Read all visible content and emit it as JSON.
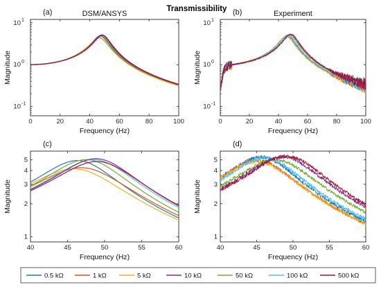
{
  "figure_title": "Transmissibility",
  "legend": {
    "entries": [
      {
        "label": "0.5 kΩ",
        "color": "#1f77b4"
      },
      {
        "label": "1 kΩ",
        "color": "#d95319"
      },
      {
        "label": "5 kΩ",
        "color": "#edb120"
      },
      {
        "label": "10 kΩ",
        "color": "#7e2f8e"
      },
      {
        "label": "50 kΩ",
        "color": "#77ac30"
      },
      {
        "label": "100 kΩ",
        "color": "#4dbeee"
      },
      {
        "label": "500 kΩ",
        "color": "#a2142f"
      }
    ]
  },
  "chart_data": [
    {
      "panel": "(a)",
      "title": "DSM/ANSYS",
      "type": "line",
      "xlabel": "Frequency (Hz)",
      "ylabel": "Magnitude",
      "xlim": [
        0,
        100
      ],
      "ylim": [
        0.06,
        12
      ],
      "yscale": "log",
      "xticks": [
        "0",
        "20",
        "40",
        "60",
        "80",
        "100"
      ],
      "yticks": [
        "10^{-1}",
        "10^{0}",
        "10^{1}"
      ],
      "noisy": false,
      "series": [
        {
          "fn": 47.5,
          "peak": 4.7
        },
        {
          "fn": 47.0,
          "peak": 4.2
        },
        {
          "fn": 47.0,
          "peak": 4.3
        },
        {
          "fn": 48.5,
          "peak": 5.0
        },
        {
          "fn": 48.0,
          "peak": 4.8
        },
        {
          "fn": 49.0,
          "peak": 5.0
        },
        {
          "fn": 49.0,
          "peak": 4.9
        }
      ]
    },
    {
      "panel": "(b)",
      "title": "Experiment",
      "type": "line",
      "xlabel": "Frequency (Hz)",
      "ylabel": "Magnitude",
      "xlim": [
        0,
        100
      ],
      "ylim": [
        0.06,
        12
      ],
      "yscale": "log",
      "xticks": [
        "0",
        "20",
        "40",
        "60",
        "80",
        "100"
      ],
      "yticks": [
        "10^{-1}",
        "10^{0}",
        "10^{1}"
      ],
      "noisy": true,
      "series": [
        {
          "fn": 46.5,
          "peak": 4.8
        },
        {
          "fn": 46.0,
          "peak": 4.5
        },
        {
          "fn": 46.0,
          "peak": 4.6
        },
        {
          "fn": 48.5,
          "peak": 5.1
        },
        {
          "fn": 48.0,
          "peak": 4.9
        },
        {
          "fn": 47.0,
          "peak": 5.0
        },
        {
          "fn": 49.0,
          "peak": 5.2
        }
      ]
    },
    {
      "panel": "(c)",
      "type": "line",
      "xlabel": "Frequency (Hz)",
      "ylabel": "Magnitude",
      "xlim": [
        40,
        60
      ],
      "ylim": [
        0.9,
        6.0
      ],
      "yscale": "log",
      "xticks": [
        "40",
        "45",
        "50",
        "55",
        "60"
      ],
      "yticks": [
        "1",
        "2",
        "3",
        "4",
        "5"
      ],
      "noisy": false,
      "series": [
        {
          "fn": 46.8,
          "peak": 4.8
        },
        {
          "fn": 47.5,
          "peak": 4.1
        },
        {
          "fn": 46.5,
          "peak": 4.0
        },
        {
          "fn": 49.3,
          "peak": 5.0
        },
        {
          "fn": 48.0,
          "peak": 4.9
        },
        {
          "fn": 49.0,
          "peak": 4.9
        },
        {
          "fn": 49.5,
          "peak": 4.7
        }
      ]
    },
    {
      "panel": "(d)",
      "type": "line",
      "xlabel": "Frequency (Hz)",
      "ylabel": "Magnitude",
      "xlim": [
        40,
        60
      ],
      "ylim": [
        0.9,
        6.0
      ],
      "yscale": "log",
      "xticks": [
        "40",
        "45",
        "50",
        "55",
        "60"
      ],
      "yticks": [
        "1",
        "2",
        "3",
        "4",
        "5"
      ],
      "noisy": true,
      "series": [
        {
          "fn": 46.0,
          "peak": 5.2
        },
        {
          "fn": 45.5,
          "peak": 4.8
        },
        {
          "fn": 45.5,
          "peak": 4.7
        },
        {
          "fn": 49.0,
          "peak": 5.2
        },
        {
          "fn": 48.0,
          "peak": 4.9
        },
        {
          "fn": 46.5,
          "peak": 5.1
        },
        {
          "fn": 49.5,
          "peak": 5.3
        }
      ]
    }
  ]
}
